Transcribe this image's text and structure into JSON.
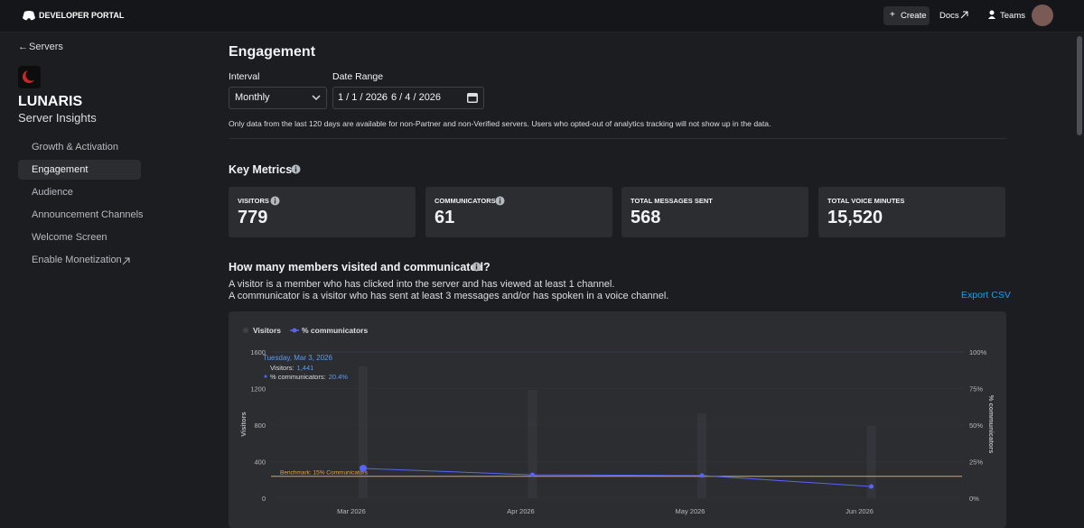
{
  "header": {
    "brand": "DEVELOPER PORTAL",
    "create": "Create",
    "docs": "Docs",
    "teams": "Teams"
  },
  "sidebar": {
    "back": "Servers",
    "server_name": "LUNARIS",
    "subtitle": "Server Insights",
    "nav": [
      "Growth & Activation",
      "Engagement",
      "Audience",
      "Announcement Channels",
      "Welcome Screen",
      "Enable Monetization"
    ]
  },
  "main": {
    "title": "Engagement",
    "interval_label": "Interval",
    "interval_value": "Monthly",
    "date_range_label": "Date Range",
    "date_start": "1 / 1 / 2026",
    "date_separator": "-",
    "date_end": "6 / 4 / 2026",
    "note": "Only data from the last 120 days are available for non-Partner and non-Verified servers. Users who opted-out of analytics tracking will not show up in the data.",
    "key_metrics_title": "Key Metrics",
    "metrics": [
      {
        "label": "VISITORS",
        "value": "779"
      },
      {
        "label": "COMMUNICATORS",
        "value": "61"
      },
      {
        "label": "TOTAL MESSAGES SENT",
        "value": "568"
      },
      {
        "label": "TOTAL VOICE MINUTES",
        "value": "15,520"
      }
    ],
    "section_title": "How many members visited and communicated?",
    "description": [
      "A visitor is a member who has clicked into the server and has viewed at least 1 channel.",
      "A communicator is a visitor who has sent at least 3 messages and/or has spoken in a voice channel."
    ],
    "export": "Export CSV"
  },
  "chart_data": {
    "type": "bar-line",
    "categories": [
      "Mar 2026",
      "Apr 2026",
      "May 2026",
      "Jun 2026"
    ],
    "series": [
      {
        "name": "Visitors",
        "color": "#3a3b41",
        "values": [
          1441,
          1185,
          928,
          790
        ]
      },
      {
        "name": "% communicators",
        "color": "#5865f2",
        "axis": "y2",
        "values": [
          20.4,
          16,
          15.5,
          8
        ]
      }
    ],
    "ylabel": "Visitors",
    "y2label": "% communicators",
    "ylim": [
      0,
      1600
    ],
    "yticks": [
      0,
      400,
      800,
      1200,
      1600
    ],
    "y2lim": [
      0,
      100
    ],
    "y2ticks": [
      {
        "value": 0,
        "label": "0%"
      },
      {
        "value": 25,
        "label": "25%"
      },
      {
        "value": 50,
        "label": "50%"
      },
      {
        "value": 75,
        "label": "75%"
      },
      {
        "value": 100,
        "label": "100%"
      }
    ],
    "benchmark": {
      "value": 15,
      "label": "Benchmark: 15% Communicators",
      "color": "#e8a33d"
    },
    "grid": true,
    "tooltip": {
      "date": "Tuesday, Mar 3, 2026",
      "visitors_label": "Visitors:",
      "visitors_value": "1,441",
      "pct_label": "% communicators:",
      "pct_value": "20.4%"
    }
  }
}
